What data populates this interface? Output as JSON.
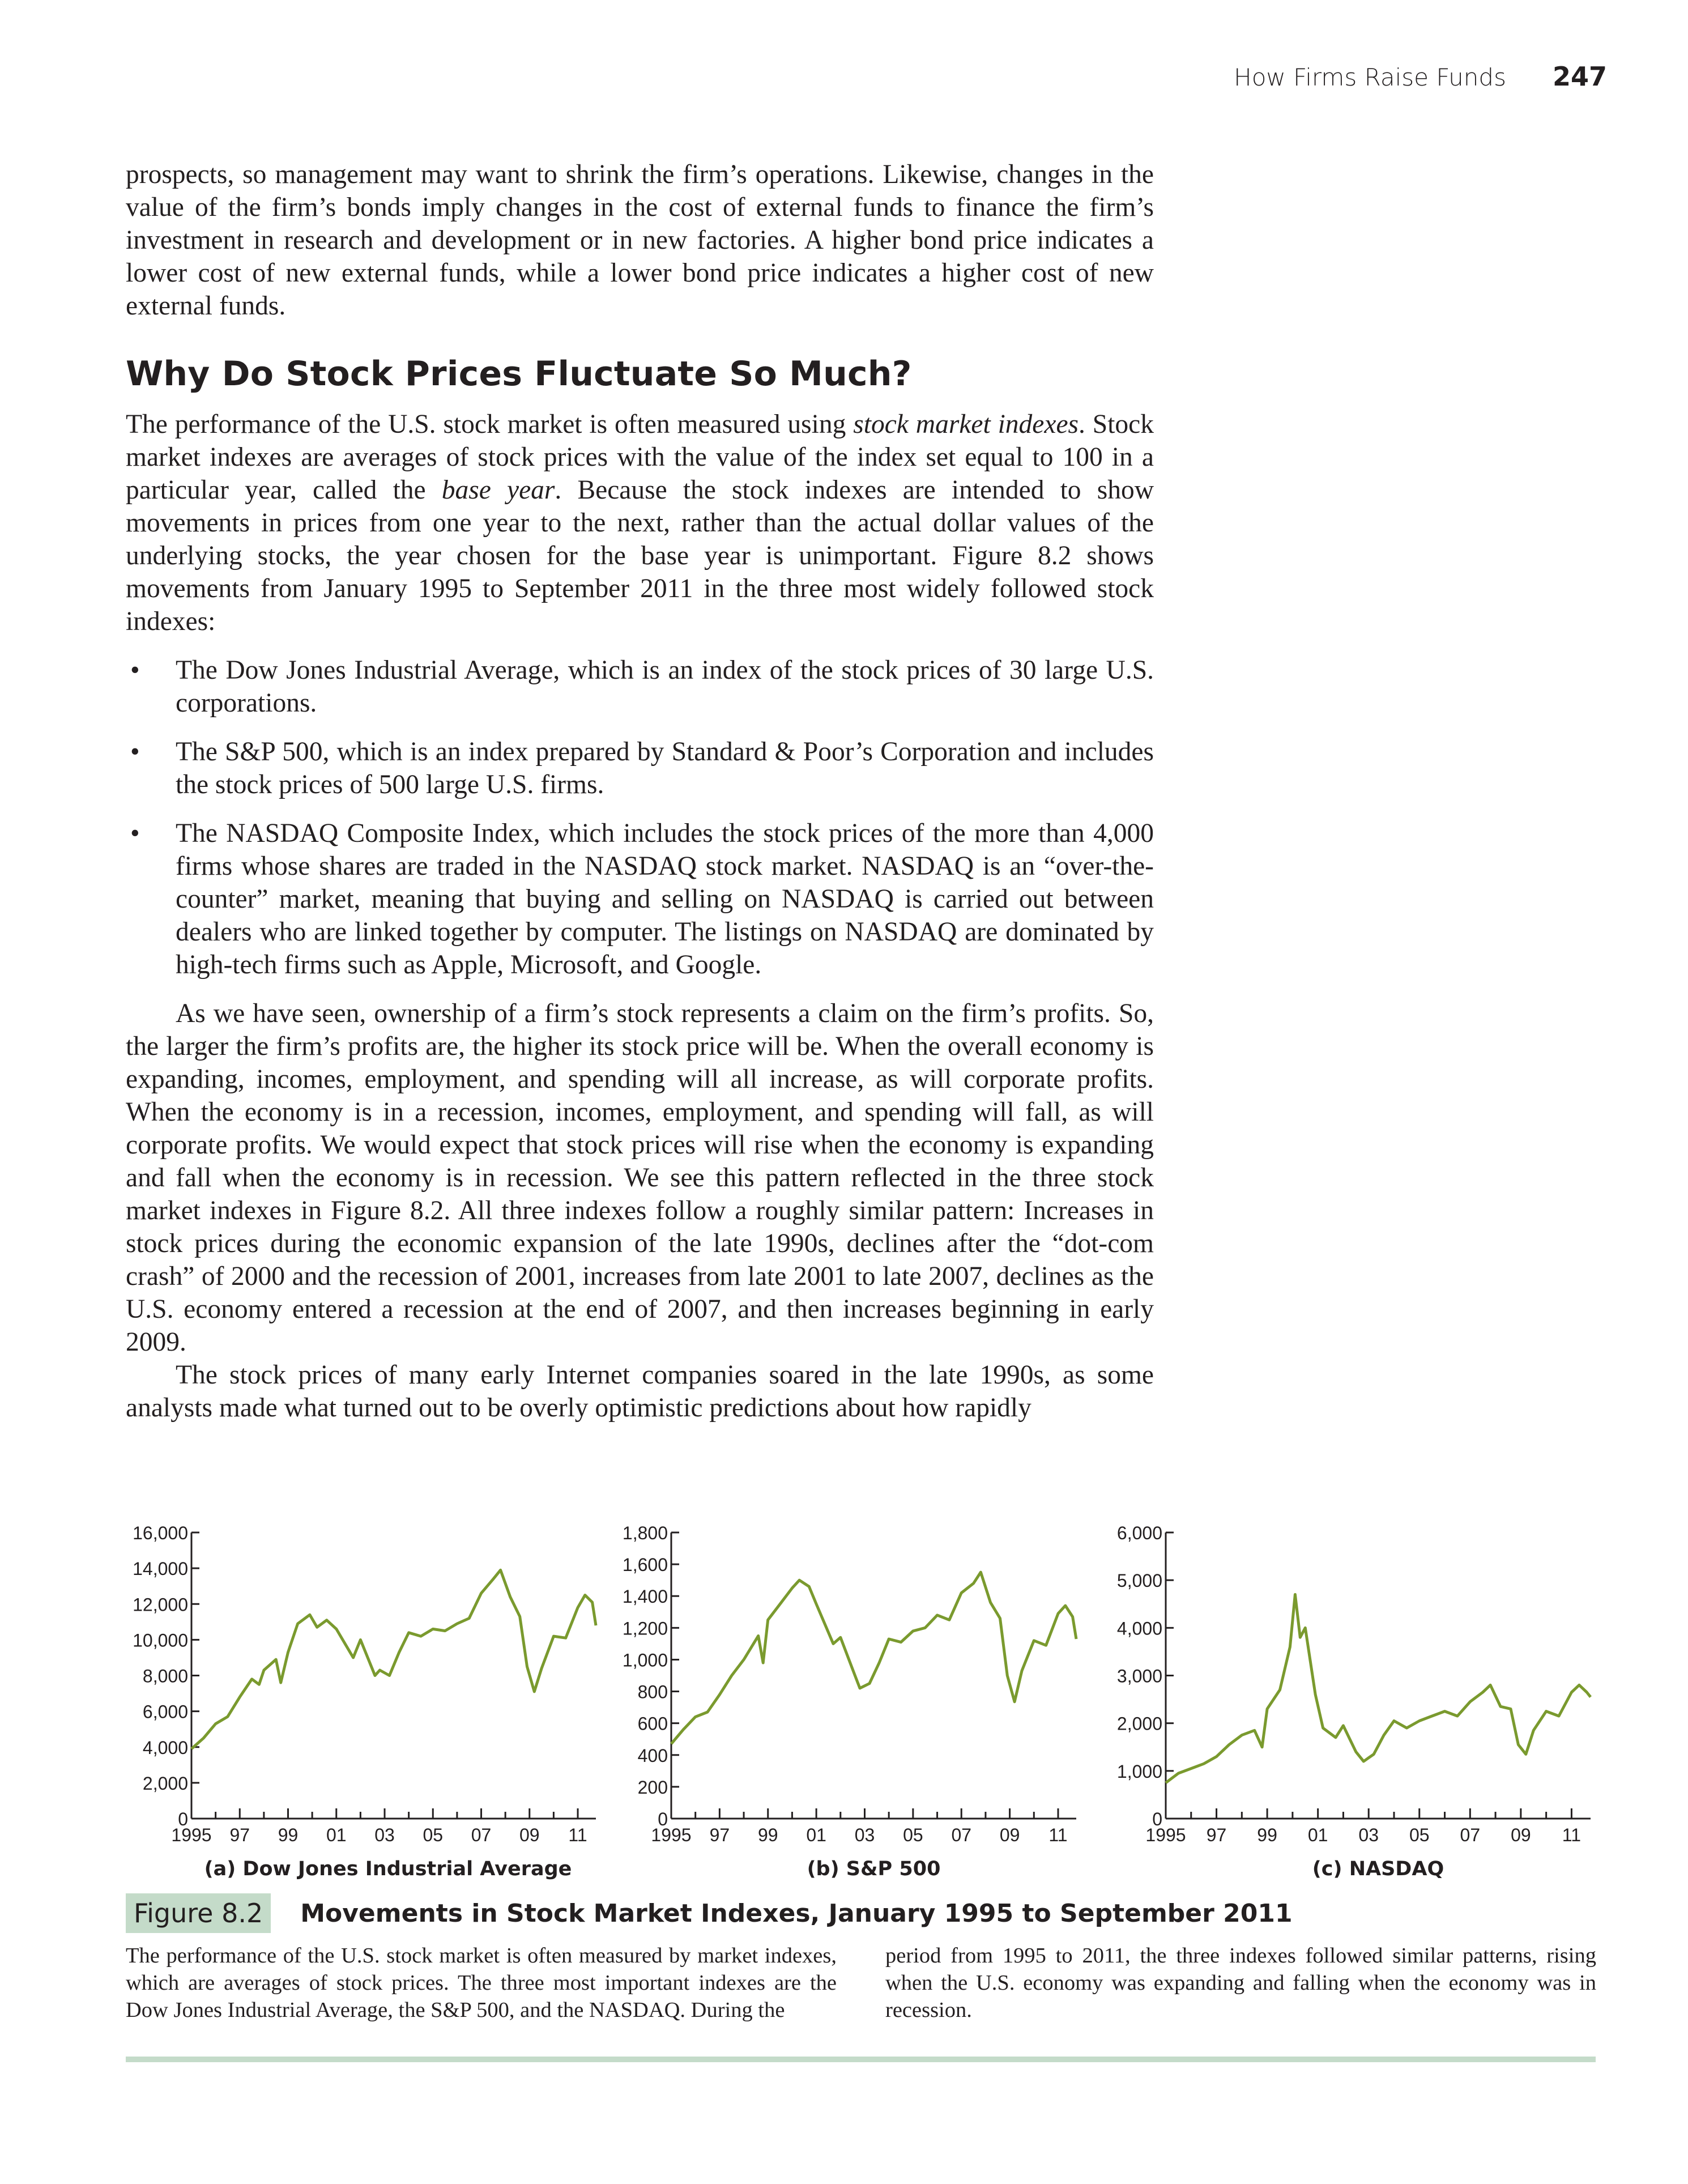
{
  "header": {
    "section_title": "How Firms Raise Funds",
    "page_number": "247"
  },
  "p1": "prospects, so management may want to shrink the firm’s operations. Likewise, changes in the value of the firm’s bonds imply changes in the cost of external funds to finance the firm’s investment in research and development or in new factories. A higher bond price indicates a lower cost of new external funds, while a lower bond price indicates a higher cost of new external funds.",
  "heading": "Why Do Stock Prices Fluctuate So Much?",
  "p2": {
    "a": "The performance of the U.S. stock market is often measured using ",
    "em1": "stock market indexes",
    "b": ". Stock market indexes are averages of stock prices with the value of the index set equal to 100 in a particular year, called the ",
    "em2": "base year",
    "c": ". Because the stock indexes are intended to show movements in prices from one year to the next, rather than the actual dollar values of the underlying stocks, the year chosen for the base year is unimportant. Figure 8.2 shows movements from January 1995 to September 2011 in the three most widely followed stock indexes:"
  },
  "bullet_symbol": "•",
  "bullets": [
    "The Dow Jones Industrial Average, which is an index of the stock prices of 30 large U.S. corporations.",
    "The S&P 500, which is an index prepared by Standard & Poor’s Corporation and includes the stock prices of 500 large U.S. firms.",
    "The NASDAQ Composite Index, which includes the stock prices of the more than 4,000 firms whose shares are traded in the NASDAQ stock market. NASDAQ is an “over-the-counter” market, meaning that buying and selling on NASDAQ is carried out between dealers who are linked together by computer. The listings on NASDAQ are dominated by high-tech firms such as Apple, Microsoft, and Google."
  ],
  "p3": "As we have seen, ownership of a firm’s stock represents a claim on the firm’s profits. So, the larger the firm’s profits are, the higher its stock price will be. When the overall economy is expanding, incomes, employment, and spending will all increase, as will corporate profits. When the economy is in a recession, incomes, employment, and spending will fall, as will corporate profits. We would expect that stock prices will rise when the economy is expanding and fall when the economy is in recession. We see this pattern reflected in the three stock market indexes in Figure 8.2. All three indexes follow a roughly similar pattern: Increases in stock prices during the economic expansion of the late 1990s, declines after the “dot-com crash” of 2000 and the recession of 2001, increases from late 2001 to late 2007, declines as the U.S. economy entered a recession at the end of 2007, and then increases beginning in early 2009.",
  "p4": "The stock prices of many early Internet companies soared in the late 1990s, as some analysts made what turned out to be overly optimistic predictions about how rapidly",
  "figure": {
    "label": "Figure 8.2",
    "title": "Movements in Stock Market Indexes, January 1995 to September 2011",
    "caption_left": "The performance of the U.S. stock market is often measured by market indexes, which are averages of stock prices. The three most important indexes are the Dow Jones Industrial Average, the S&P 500, and the NASDAQ. During the",
    "caption_right": "period from 1995 to 2011, the three indexes followed similar patterns, rising when the U.S. economy was expanding and falling when the economy was in recession."
  },
  "chart_data": [
    {
      "type": "line",
      "title": "(a) Dow Jones Industrial Average",
      "xlabel": "",
      "ylabel": "",
      "x_tick_labels": [
        "1995",
        "97",
        "99",
        "01",
        "03",
        "05",
        "07",
        "09",
        "11"
      ],
      "y_ticks": [
        "0",
        "2,000",
        "4,000",
        "6,000",
        "8,000",
        "10,000",
        "12,000",
        "14,000",
        "16,000"
      ],
      "ylim": [
        0,
        16000
      ],
      "xlim": [
        1995,
        2011.75
      ],
      "line_color": "#7a9a2e",
      "x": [
        1995,
        1995.5,
        1996,
        1996.5,
        1997,
        1997.5,
        1997.8,
        1998,
        1998.5,
        1998.7,
        1999,
        1999.4,
        1999.9,
        2000.2,
        2000.6,
        2001,
        2001.7,
        2002,
        2002.6,
        2002.8,
        2003.2,
        2003.6,
        2004,
        2004.5,
        2005,
        2005.5,
        2006,
        2006.5,
        2007,
        2007.5,
        2007.8,
        2008.2,
        2008.6,
        2008.9,
        2009.2,
        2009.5,
        2010,
        2010.5,
        2011,
        2011.3,
        2011.6,
        2011.75
      ],
      "y": [
        3900,
        4500,
        5300,
        5700,
        6800,
        7800,
        7500,
        8300,
        8900,
        7600,
        9300,
        10900,
        11400,
        10700,
        11100,
        10600,
        9000,
        10000,
        8000,
        8300,
        8000,
        9300,
        10400,
        10200,
        10600,
        10500,
        10900,
        11200,
        12600,
        13400,
        13900,
        12400,
        11300,
        8500,
        7100,
        8400,
        10200,
        10100,
        11800,
        12500,
        12100,
        10800
      ]
    },
    {
      "type": "line",
      "title": "(b) S&P 500",
      "xlabel": "",
      "ylabel": "",
      "x_tick_labels": [
        "1995",
        "97",
        "99",
        "01",
        "03",
        "05",
        "07",
        "09",
        "11"
      ],
      "y_ticks": [
        "0",
        "200",
        "400",
        "600",
        "800",
        "1,000",
        "1,200",
        "1,400",
        "1,600",
        "1,800"
      ],
      "ylim": [
        0,
        1800
      ],
      "xlim": [
        1995,
        2011.75
      ],
      "line_color": "#7a9a2e",
      "x": [
        1995,
        1995.5,
        1996,
        1996.5,
        1997,
        1997.5,
        1998,
        1998.6,
        1998.8,
        1999,
        1999.5,
        2000,
        2000.3,
        2000.7,
        2001,
        2001.7,
        2002,
        2002.6,
        2002.8,
        2003.2,
        2003.6,
        2004,
        2004.5,
        2005,
        2005.5,
        2006,
        2006.5,
        2007,
        2007.5,
        2007.8,
        2008.2,
        2008.6,
        2008.9,
        2009.2,
        2009.5,
        2010,
        2010.5,
        2011,
        2011.3,
        2011.6,
        2011.75
      ],
      "y": [
        470,
        560,
        640,
        670,
        780,
        900,
        1000,
        1150,
        980,
        1250,
        1350,
        1450,
        1500,
        1460,
        1350,
        1100,
        1140,
        900,
        820,
        850,
        980,
        1130,
        1110,
        1180,
        1200,
        1280,
        1250,
        1420,
        1480,
        1550,
        1360,
        1260,
        900,
        735,
        930,
        1120,
        1090,
        1290,
        1340,
        1270,
        1130
      ]
    },
    {
      "type": "line",
      "title": "(c) NASDAQ",
      "xlabel": "",
      "ylabel": "",
      "x_tick_labels": [
        "1995",
        "97",
        "99",
        "01",
        "03",
        "05",
        "07",
        "09",
        "11"
      ],
      "y_ticks": [
        "0",
        "1,000",
        "2,000",
        "3,000",
        "4,000",
        "5,000",
        "6,000"
      ],
      "ylim": [
        0,
        6000
      ],
      "xlim": [
        1995,
        2011.75
      ],
      "line_color": "#7a9a2e",
      "x": [
        1995,
        1995.5,
        1996,
        1996.5,
        1997,
        1997.5,
        1998,
        1998.5,
        1998.8,
        1999,
        1999.5,
        1999.9,
        2000.1,
        2000.3,
        2000.5,
        2000.9,
        2001.2,
        2001.7,
        2002,
        2002.5,
        2002.8,
        2003.2,
        2003.6,
        2004,
        2004.5,
        2005,
        2005.5,
        2006,
        2006.5,
        2007,
        2007.5,
        2007.8,
        2008.2,
        2008.6,
        2008.9,
        2009.2,
        2009.5,
        2010,
        2010.5,
        2011,
        2011.3,
        2011.6,
        2011.75
      ],
      "y": [
        750,
        950,
        1050,
        1150,
        1300,
        1550,
        1750,
        1850,
        1500,
        2300,
        2700,
        3600,
        4700,
        3800,
        4000,
        2600,
        1900,
        1700,
        1950,
        1400,
        1200,
        1350,
        1750,
        2050,
        1900,
        2050,
        2150,
        2250,
        2150,
        2450,
        2650,
        2800,
        2350,
        2300,
        1550,
        1350,
        1850,
        2250,
        2150,
        2650,
        2800,
        2650,
        2550
      ]
    }
  ]
}
